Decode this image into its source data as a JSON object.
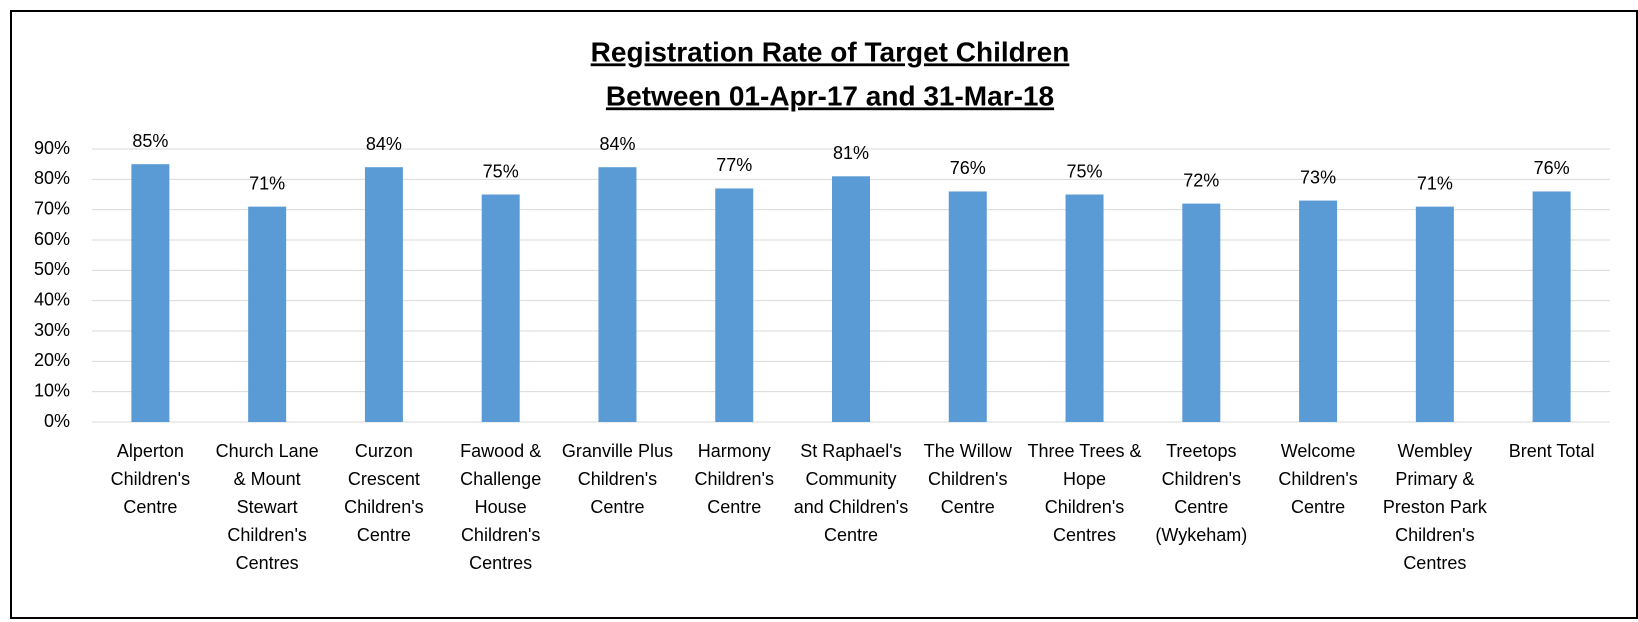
{
  "chart_data": {
    "type": "bar",
    "title": "Registration Rate of Target Children",
    "subtitle": "Between 01-Apr-17 and 31-Mar-18",
    "categories": [
      "Alperton Children's Centre",
      "Church Lane & Mount Stewart Children's Centres",
      "Curzon Crescent Children's Centre",
      "Fawood & Challenge House Children's Centres",
      "Granville Plus Children's Centre",
      "Harmony Children's Centre",
      "St Raphael's Community and Children's Centre",
      "The Willow Children's Centre",
      "Three Trees & Hope Children's Centres",
      "Treetops Children's Centre (Wykeham)",
      "Welcome Children's Centre",
      "Wembley Primary & Preston Park Children's Centres",
      "Brent Total"
    ],
    "values": [
      85,
      71,
      84,
      75,
      84,
      77,
      81,
      76,
      75,
      72,
      73,
      71,
      76
    ],
    "value_labels": [
      "85%",
      "71%",
      "84%",
      "75%",
      "84%",
      "77%",
      "81%",
      "76%",
      "75%",
      "72%",
      "73%",
      "71%",
      "76%"
    ],
    "color": "#5b9bd5",
    "ylim": [
      0,
      90
    ],
    "yticks": [
      {
        "value": 0,
        "label": "0%"
      },
      {
        "value": 10,
        "label": "10%"
      },
      {
        "value": 20,
        "label": "20%"
      },
      {
        "value": 30,
        "label": "30%"
      },
      {
        "value": 40,
        "label": "40%"
      },
      {
        "value": 50,
        "label": "50%"
      },
      {
        "value": 60,
        "label": "60%"
      },
      {
        "value": 70,
        "label": "70%"
      },
      {
        "value": 80,
        "label": "80%"
      },
      {
        "value": 90,
        "label": "90%"
      }
    ],
    "grid": true
  }
}
